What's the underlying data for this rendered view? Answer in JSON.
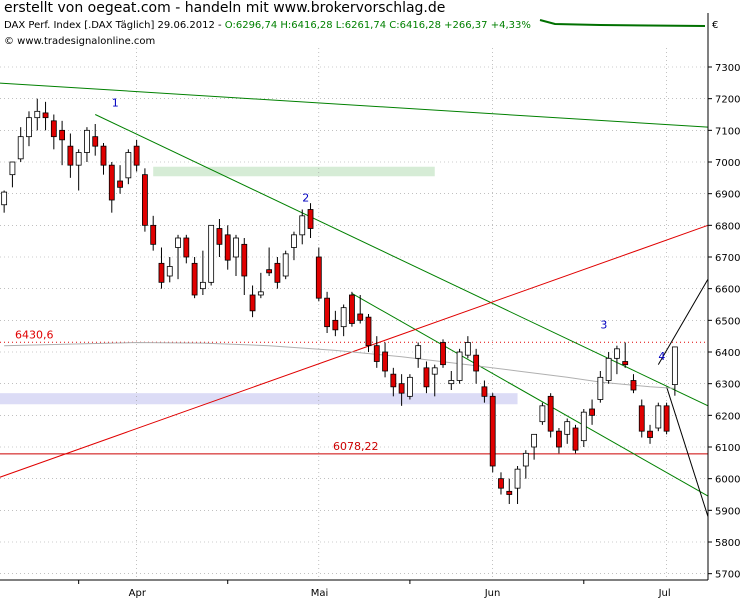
{
  "header": {
    "title": "erstellt von oegeat.com - handeln mit www.brokervorschlag.de",
    "info_black": "DAX Perf. Index [.DAX  Täglich] 29.06.2012 - ",
    "info_green": "O:6296,74 H:6416,28 L:6261,74 C:6416,28 +266,37 +4,33%",
    "copyright": "© www.tradesignalonline.com",
    "currency": "€"
  },
  "chart_data": {
    "type": "candlestick",
    "yaxis": {
      "ticks": [
        7300,
        7200,
        7100,
        7000,
        6900,
        6800,
        6700,
        6600,
        6500,
        6400,
        6300,
        6200,
        6100,
        6000,
        5900,
        5800,
        5700
      ],
      "range": [
        5680,
        7360
      ]
    },
    "xaxis": {
      "ticks": [
        {
          "label": "Apr",
          "i": 16
        },
        {
          "label": "Mai",
          "i": 38
        },
        {
          "label": "Jun",
          "i": 59
        },
        {
          "label": "Jul",
          "i": 80
        }
      ],
      "range": [
        -0.5,
        85
      ]
    },
    "candles": [
      {
        "o": 6865,
        "h": 6910,
        "l": 6840,
        "c": 6905
      },
      {
        "o": 6960,
        "h": 7000,
        "l": 6920,
        "c": 7000
      },
      {
        "o": 7010,
        "h": 7110,
        "l": 7000,
        "c": 7080
      },
      {
        "o": 7080,
        "h": 7160,
        "l": 7050,
        "c": 7140
      },
      {
        "o": 7140,
        "h": 7200,
        "l": 7100,
        "c": 7160
      },
      {
        "o": 7155,
        "h": 7190,
        "l": 7100,
        "c": 7140
      },
      {
        "o": 7130,
        "h": 7150,
        "l": 7040,
        "c": 7080
      },
      {
        "o": 7100,
        "h": 7130,
        "l": 6990,
        "c": 7070
      },
      {
        "o": 7050,
        "h": 7090,
        "l": 6950,
        "c": 6990
      },
      {
        "o": 6990,
        "h": 7040,
        "l": 6910,
        "c": 7030
      },
      {
        "o": 7030,
        "h": 7110,
        "l": 7000,
        "c": 7100
      },
      {
        "o": 7080,
        "h": 7120,
        "l": 7020,
        "c": 7050
      },
      {
        "o": 7050,
        "h": 7060,
        "l": 6960,
        "c": 6990
      },
      {
        "o": 6990,
        "h": 7000,
        "l": 6840,
        "c": 6880
      },
      {
        "o": 6940,
        "h": 6990,
        "l": 6900,
        "c": 6920
      },
      {
        "o": 6950,
        "h": 7040,
        "l": 6930,
        "c": 7030
      },
      {
        "o": 7050,
        "h": 7070,
        "l": 6970,
        "c": 6990
      },
      {
        "o": 6960,
        "h": 6980,
        "l": 6780,
        "c": 6800
      },
      {
        "o": 6800,
        "h": 6830,
        "l": 6720,
        "c": 6740
      },
      {
        "o": 6680,
        "h": 6730,
        "l": 6600,
        "c": 6620
      },
      {
        "o": 6640,
        "h": 6700,
        "l": 6620,
        "c": 6670
      },
      {
        "o": 6730,
        "h": 6770,
        "l": 6630,
        "c": 6760
      },
      {
        "o": 6760,
        "h": 6770,
        "l": 6680,
        "c": 6700
      },
      {
        "o": 6680,
        "h": 6700,
        "l": 6570,
        "c": 6580
      },
      {
        "o": 6600,
        "h": 6720,
        "l": 6580,
        "c": 6620
      },
      {
        "o": 6620,
        "h": 6800,
        "l": 6610,
        "c": 6800
      },
      {
        "o": 6790,
        "h": 6820,
        "l": 6700,
        "c": 6740
      },
      {
        "o": 6770,
        "h": 6800,
        "l": 6660,
        "c": 6690
      },
      {
        "o": 6700,
        "h": 6770,
        "l": 6640,
        "c": 6760
      },
      {
        "o": 6740,
        "h": 6760,
        "l": 6580,
        "c": 6640
      },
      {
        "o": 6580,
        "h": 6610,
        "l": 6510,
        "c": 6530
      },
      {
        "o": 6580,
        "h": 6650,
        "l": 6570,
        "c": 6590
      },
      {
        "o": 6660,
        "h": 6730,
        "l": 6640,
        "c": 6650
      },
      {
        "o": 6680,
        "h": 6700,
        "l": 6600,
        "c": 6620
      },
      {
        "o": 6640,
        "h": 6720,
        "l": 6630,
        "c": 6710
      },
      {
        "o": 6730,
        "h": 6780,
        "l": 6690,
        "c": 6770
      },
      {
        "o": 6770,
        "h": 6850,
        "l": 6740,
        "c": 6830
      },
      {
        "o": 6850,
        "h": 6870,
        "l": 6760,
        "c": 6790
      },
      {
        "o": 6700,
        "h": 6730,
        "l": 6560,
        "c": 6570
      },
      {
        "o": 6570,
        "h": 6590,
        "l": 6460,
        "c": 6480
      },
      {
        "o": 6500,
        "h": 6530,
        "l": 6450,
        "c": 6470
      },
      {
        "o": 6480,
        "h": 6550,
        "l": 6450,
        "c": 6540
      },
      {
        "o": 6580,
        "h": 6590,
        "l": 6480,
        "c": 6490
      },
      {
        "o": 6520,
        "h": 6580,
        "l": 6490,
        "c": 6500
      },
      {
        "o": 6510,
        "h": 6520,
        "l": 6400,
        "c": 6420
      },
      {
        "o": 6420,
        "h": 6450,
        "l": 6350,
        "c": 6370
      },
      {
        "o": 6400,
        "h": 6430,
        "l": 6320,
        "c": 6340
      },
      {
        "o": 6330,
        "h": 6350,
        "l": 6260,
        "c": 6290
      },
      {
        "o": 6300,
        "h": 6330,
        "l": 6230,
        "c": 6270
      },
      {
        "o": 6260,
        "h": 6330,
        "l": 6250,
        "c": 6320
      },
      {
        "o": 6380,
        "h": 6430,
        "l": 6350,
        "c": 6420
      },
      {
        "o": 6350,
        "h": 6370,
        "l": 6270,
        "c": 6290
      },
      {
        "o": 6330,
        "h": 6360,
        "l": 6260,
        "c": 6350
      },
      {
        "o": 6430,
        "h": 6440,
        "l": 6350,
        "c": 6360
      },
      {
        "o": 6300,
        "h": 6340,
        "l": 6280,
        "c": 6310
      },
      {
        "o": 6310,
        "h": 6410,
        "l": 6300,
        "c": 6400
      },
      {
        "o": 6390,
        "h": 6450,
        "l": 6380,
        "c": 6430
      },
      {
        "o": 6390,
        "h": 6410,
        "l": 6300,
        "c": 6340
      },
      {
        "o": 6290,
        "h": 6310,
        "l": 6240,
        "c": 6260
      },
      {
        "o": 6260,
        "h": 6270,
        "l": 6020,
        "c": 6040
      },
      {
        "o": 6000,
        "h": 6020,
        "l": 5950,
        "c": 5970
      },
      {
        "o": 5960,
        "h": 6000,
        "l": 5920,
        "c": 5950
      },
      {
        "o": 5970,
        "h": 6040,
        "l": 5920,
        "c": 6030
      },
      {
        "o": 6040,
        "h": 6090,
        "l": 6000,
        "c": 6080
      },
      {
        "o": 6100,
        "h": 6140,
        "l": 6060,
        "c": 6140
      },
      {
        "o": 6180,
        "h": 6240,
        "l": 6170,
        "c": 6230
      },
      {
        "o": 6260,
        "h": 6270,
        "l": 6130,
        "c": 6150
      },
      {
        "o": 6150,
        "h": 6160,
        "l": 6080,
        "c": 6100
      },
      {
        "o": 6140,
        "h": 6190,
        "l": 6110,
        "c": 6180
      },
      {
        "o": 6160,
        "h": 6170,
        "l": 6080,
        "c": 6090
      },
      {
        "o": 6120,
        "h": 6220,
        "l": 6100,
        "c": 6210
      },
      {
        "o": 6220,
        "h": 6250,
        "l": 6170,
        "c": 6200
      },
      {
        "o": 6250,
        "h": 6340,
        "l": 6240,
        "c": 6320
      },
      {
        "o": 6310,
        "h": 6400,
        "l": 6300,
        "c": 6380
      },
      {
        "o": 6380,
        "h": 6420,
        "l": 6330,
        "c": 6410
      },
      {
        "o": 6370,
        "h": 6430,
        "l": 6350,
        "c": 6360
      },
      {
        "o": 6310,
        "h": 6330,
        "l": 6270,
        "c": 6280
      },
      {
        "o": 6230,
        "h": 6250,
        "l": 6130,
        "c": 6150
      },
      {
        "o": 6150,
        "h": 6170,
        "l": 6110,
        "c": 6130
      },
      {
        "o": 6160,
        "h": 6240,
        "l": 6150,
        "c": 6230
      },
      {
        "o": 6230,
        "h": 6240,
        "l": 6140,
        "c": 6150
      },
      {
        "o": 6297,
        "h": 6416,
        "l": 6262,
        "c": 6416
      }
    ],
    "ma_line": [
      {
        "i": 0,
        "v": 6420
      },
      {
        "i": 8,
        "v": 6425
      },
      {
        "i": 16,
        "v": 6430
      },
      {
        "i": 24,
        "v": 6428
      },
      {
        "i": 32,
        "v": 6420
      },
      {
        "i": 40,
        "v": 6405
      },
      {
        "i": 48,
        "v": 6385
      },
      {
        "i": 56,
        "v": 6360
      },
      {
        "i": 62,
        "v": 6340
      },
      {
        "i": 68,
        "v": 6320
      },
      {
        "i": 72,
        "v": 6305
      },
      {
        "i": 78,
        "v": 6290
      },
      {
        "i": 81,
        "v": 6285
      }
    ],
    "horizontal_lines": [
      {
        "label": "6430,6",
        "value": 6430.6,
        "style": "dotted",
        "color": "#e00000"
      },
      {
        "label": "6078,22",
        "value": 6078.22,
        "style": "solid",
        "color": "#cc0000"
      }
    ],
    "trend_lines": [
      {
        "color": "#008000",
        "from": {
          "i": -1,
          "v": 7250
        },
        "to": {
          "i": 85,
          "v": 7110
        }
      },
      {
        "color": "#008000",
        "from": {
          "i": 11,
          "v": 7150
        },
        "to": {
          "i": 85,
          "v": 6230
        }
      },
      {
        "color": "#008000",
        "from": {
          "i": 42,
          "v": 6585
        },
        "to": {
          "i": 85,
          "v": 5945
        }
      },
      {
        "color": "#e00000",
        "from": {
          "i": -1,
          "v": 6000
        },
        "to": {
          "i": 85,
          "v": 6800
        }
      },
      {
        "color": "#000000",
        "from": {
          "i": 79,
          "v": 6360
        },
        "to": {
          "i": 85,
          "v": 6630
        }
      },
      {
        "color": "#000000",
        "from": {
          "i": 80,
          "v": 6290
        },
        "to": {
          "i": 85,
          "v": 5880
        }
      }
    ],
    "zones": [
      {
        "color": "#d6ecd6",
        "i_start": 18,
        "i_end": 52,
        "v_low": 6955,
        "v_high": 6985
      },
      {
        "color": "#dcdcf6",
        "i_start": -1,
        "i_end": 62,
        "v_low": 6235,
        "v_high": 6270
      }
    ],
    "annotations": [
      {
        "text": "1",
        "i": 13,
        "v": 7175
      },
      {
        "text": "2",
        "i": 36,
        "v": 6875
      },
      {
        "text": "3",
        "i": 72,
        "v": 6475
      },
      {
        "text": "4",
        "i": 79,
        "v": 6375
      }
    ],
    "colors": {
      "up": "#ffffff",
      "down": "#e00000",
      "wick": "#000000",
      "ma": "#b0b0b0"
    }
  }
}
